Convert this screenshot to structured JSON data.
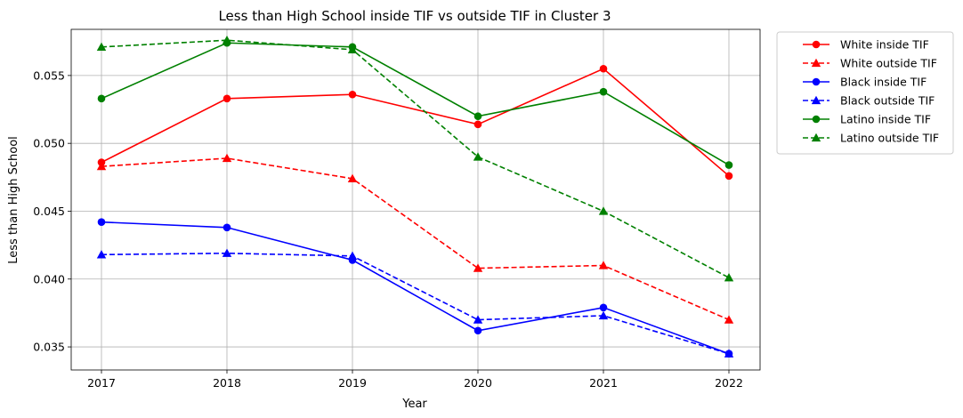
{
  "chart_data": {
    "type": "line",
    "title": "Less than High School inside TIF vs outside TIF in Cluster 3",
    "xlabel": "Year",
    "ylabel": "Less than High School",
    "x": [
      2017,
      2018,
      2019,
      2020,
      2021,
      2022
    ],
    "x_tick_labels": [
      "2017",
      "2018",
      "2019",
      "2020",
      "2021",
      "2022"
    ],
    "ylim": [
      0.0333,
      0.0584
    ],
    "y_ticks": [
      0.035,
      0.04,
      0.045,
      0.05,
      0.055
    ],
    "y_tick_labels": [
      "0.035",
      "0.040",
      "0.045",
      "0.050",
      "0.055"
    ],
    "grid": true,
    "legend_position": "outside-top-right",
    "series": [
      {
        "name": "White inside TIF",
        "color": "#ff0000",
        "dashed": false,
        "marker": "circle",
        "values": [
          0.0486,
          0.0533,
          0.0536,
          0.0514,
          0.0555,
          0.0476
        ]
      },
      {
        "name": "White outside TIF",
        "color": "#ff0000",
        "dashed": true,
        "marker": "triangle",
        "values": [
          0.0483,
          0.0489,
          0.0474,
          0.0408,
          0.041,
          0.037
        ]
      },
      {
        "name": "Black inside TIF",
        "color": "#0000ff",
        "dashed": false,
        "marker": "circle",
        "values": [
          0.0442,
          0.0438,
          0.0414,
          0.0362,
          0.0379,
          0.0345
        ]
      },
      {
        "name": "Black outside TIF",
        "color": "#0000ff",
        "dashed": true,
        "marker": "triangle",
        "values": [
          0.0418,
          0.0419,
          0.0417,
          0.037,
          0.0373,
          0.0345
        ]
      },
      {
        "name": "Latino inside TIF",
        "color": "#008000",
        "dashed": false,
        "marker": "circle",
        "values": [
          0.0533,
          0.0574,
          0.0571,
          0.052,
          0.0538,
          0.0484
        ]
      },
      {
        "name": "Latino outside TIF",
        "color": "#008000",
        "dashed": true,
        "marker": "triangle",
        "values": [
          0.0571,
          0.0576,
          0.0569,
          0.049,
          0.045,
          0.0401
        ]
      }
    ]
  }
}
